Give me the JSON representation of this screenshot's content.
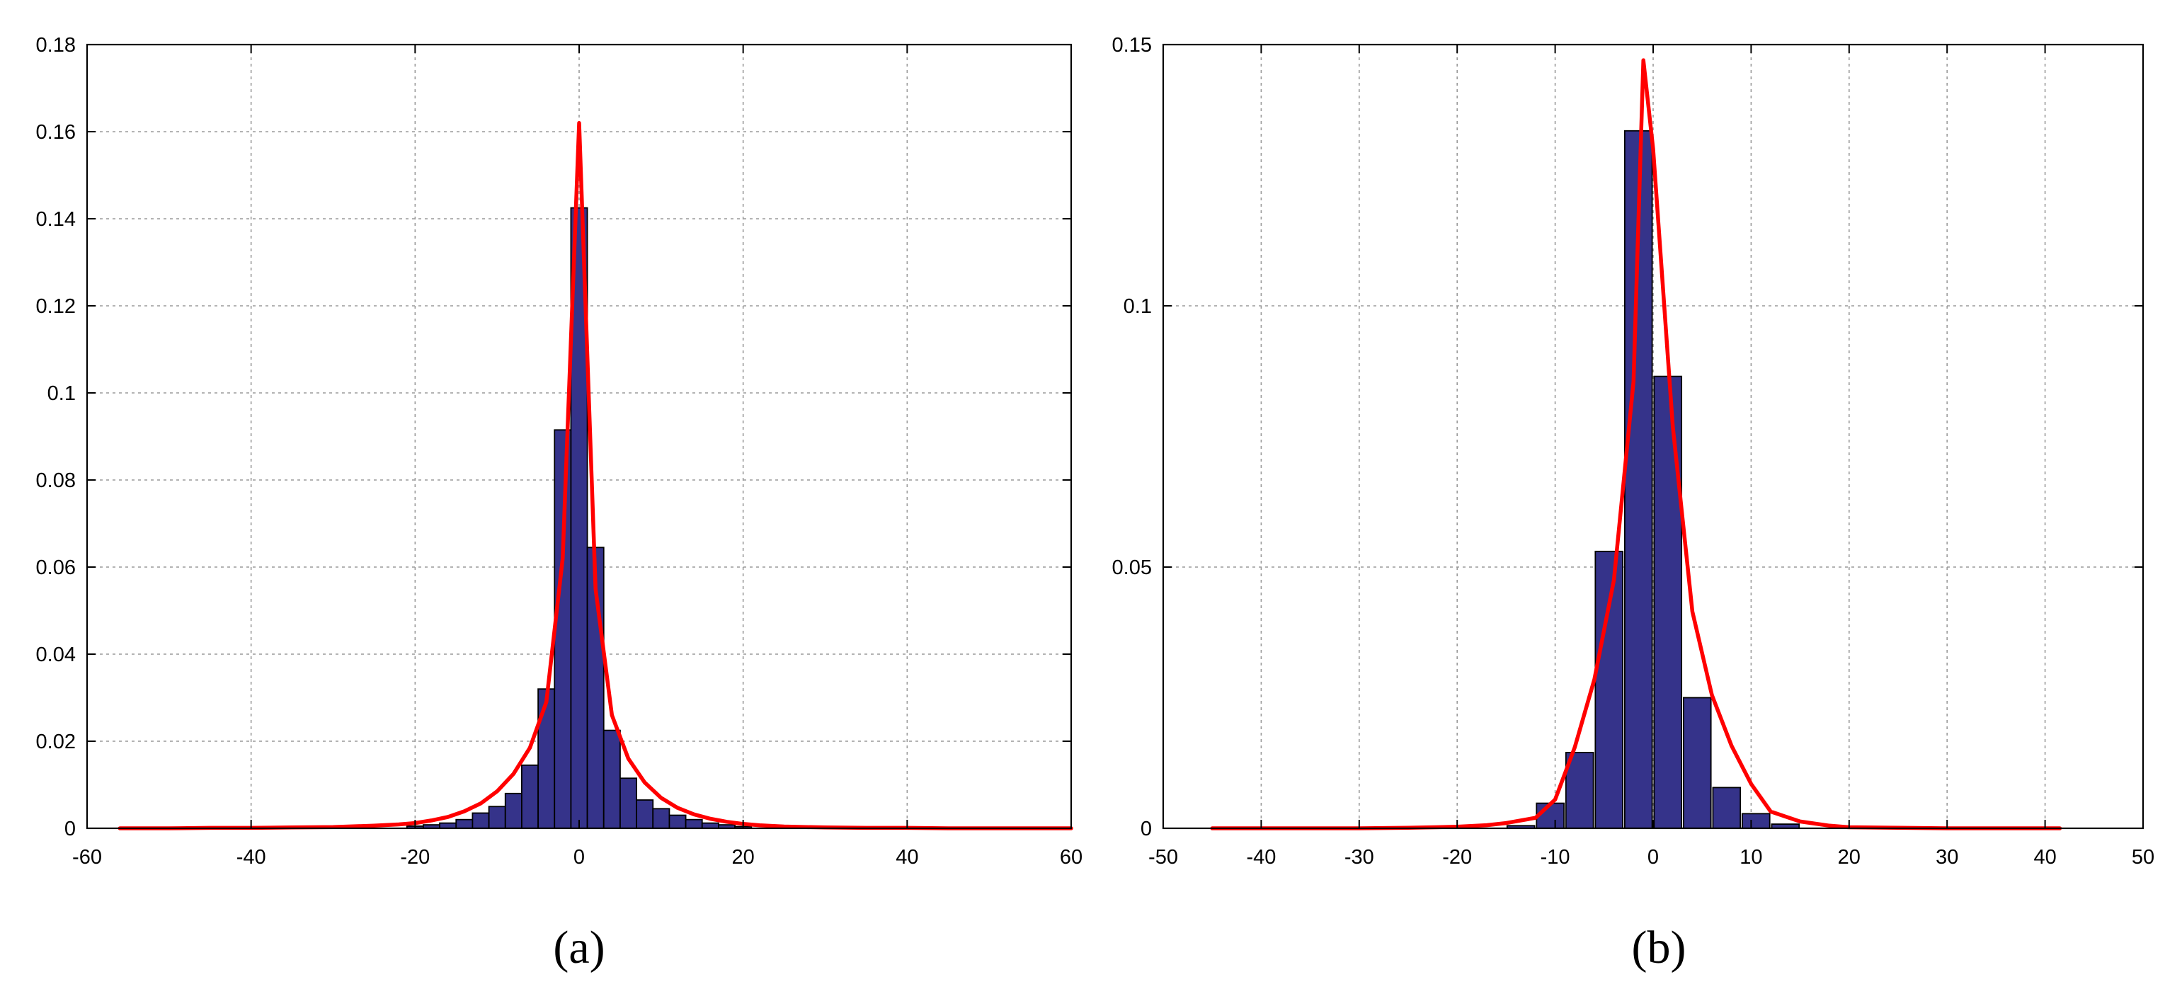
{
  "colors": {
    "bar_fill": "#35338a",
    "bar_edge": "#000000",
    "fit_line": "#ff0000",
    "grid": "#9a9a9a"
  },
  "panels": [
    {
      "caption": "(a)"
    },
    {
      "caption": "(b)"
    }
  ],
  "chart_data": [
    {
      "type": "bar",
      "title": "",
      "xlabel": "",
      "ylabel": "",
      "xlim": [
        -60,
        60
      ],
      "ylim": [
        0,
        0.18
      ],
      "xticks": [
        -60,
        -40,
        -20,
        0,
        20,
        40,
        60
      ],
      "xtick_labels": [
        "-60",
        "-40",
        "-20",
        "0",
        "20",
        "40",
        "60"
      ],
      "yticks": [
        0,
        0.02,
        0.04,
        0.06,
        0.08,
        0.1,
        0.12,
        0.14,
        0.16,
        0.18
      ],
      "ytick_labels": [
        "0",
        "0.02",
        "0.04",
        "0.06",
        "0.08",
        "0.1",
        "0.12",
        "0.14",
        "0.16",
        "0.18"
      ],
      "grid": true,
      "bar_width": 2.0,
      "bars": {
        "x": [
          -20,
          -18,
          -16,
          -14,
          -12,
          -10,
          -8,
          -6,
          -4,
          -2,
          0,
          2,
          4,
          6,
          8,
          10,
          12,
          14,
          16,
          18,
          20
        ],
        "values": [
          0.0005,
          0.0008,
          0.0012,
          0.002,
          0.0035,
          0.005,
          0.008,
          0.0145,
          0.032,
          0.0915,
          0.1425,
          0.0645,
          0.0225,
          0.0115,
          0.0065,
          0.0045,
          0.003,
          0.002,
          0.0012,
          0.0008,
          0.0004
        ]
      },
      "fit_line": {
        "x": [
          -56,
          -50,
          -45,
          -40,
          -35,
          -30,
          -25,
          -22,
          -20,
          -18,
          -16,
          -14,
          -12,
          -10,
          -8,
          -6,
          -4,
          -2,
          0,
          2,
          4,
          6,
          8,
          10,
          12,
          14,
          16,
          18,
          20,
          22,
          25,
          30,
          35,
          40,
          45,
          50,
          55,
          60
        ],
        "y": [
          0.0,
          0.0,
          0.0001,
          0.0001,
          0.0002,
          0.0003,
          0.0006,
          0.0009,
          0.0012,
          0.0018,
          0.0026,
          0.0039,
          0.0057,
          0.0085,
          0.0125,
          0.0185,
          0.029,
          0.062,
          0.162,
          0.055,
          0.026,
          0.016,
          0.0105,
          0.007,
          0.0047,
          0.0032,
          0.0022,
          0.0015,
          0.001,
          0.0007,
          0.0004,
          0.0002,
          0.0001,
          0.0001,
          0.0,
          0.0,
          0.0,
          0.0
        ]
      }
    },
    {
      "type": "bar",
      "title": "",
      "xlabel": "",
      "ylabel": "",
      "xlim": [
        -50,
        50
      ],
      "ylim": [
        0,
        0.15
      ],
      "xticks": [
        -50,
        -40,
        -30,
        -20,
        -10,
        0,
        10,
        20,
        30,
        40,
        50
      ],
      "xtick_labels": [
        "-50",
        "-40",
        "-30",
        "-20",
        "-10",
        "0",
        "10",
        "20",
        "30",
        "40",
        "50"
      ],
      "yticks": [
        0,
        0.05,
        0.1,
        0.15
      ],
      "ytick_labels": [
        "0",
        "0.05",
        "0.1",
        "0.15"
      ],
      "grid": true,
      "bar_width": 2.8,
      "bars": {
        "x": [
          -13.5,
          -10.5,
          -7.5,
          -4.5,
          -1.5,
          1.5,
          4.5,
          7.5,
          10.5,
          13.5
        ],
        "values": [
          0.0005,
          0.0048,
          0.0145,
          0.053,
          0.1335,
          0.0865,
          0.025,
          0.0078,
          0.0028,
          0.0008
        ]
      },
      "fit_line": {
        "x": [
          -45,
          -40,
          -35,
          -30,
          -25,
          -20,
          -17,
          -15,
          -12,
          -10,
          -8,
          -6,
          -4,
          -2,
          -1,
          0,
          2,
          4,
          6,
          8,
          10,
          12,
          15,
          18,
          20,
          25,
          30,
          35,
          40,
          41.5
        ],
        "y": [
          0.0,
          0.0,
          0.0,
          0.0,
          0.0001,
          0.0003,
          0.0006,
          0.001,
          0.002,
          0.0055,
          0.0155,
          0.0285,
          0.0475,
          0.0855,
          0.147,
          0.13,
          0.077,
          0.0415,
          0.0255,
          0.0158,
          0.0085,
          0.0032,
          0.0013,
          0.0005,
          0.0002,
          0.0001,
          0.0,
          0.0,
          0.0,
          0.0
        ]
      }
    }
  ]
}
